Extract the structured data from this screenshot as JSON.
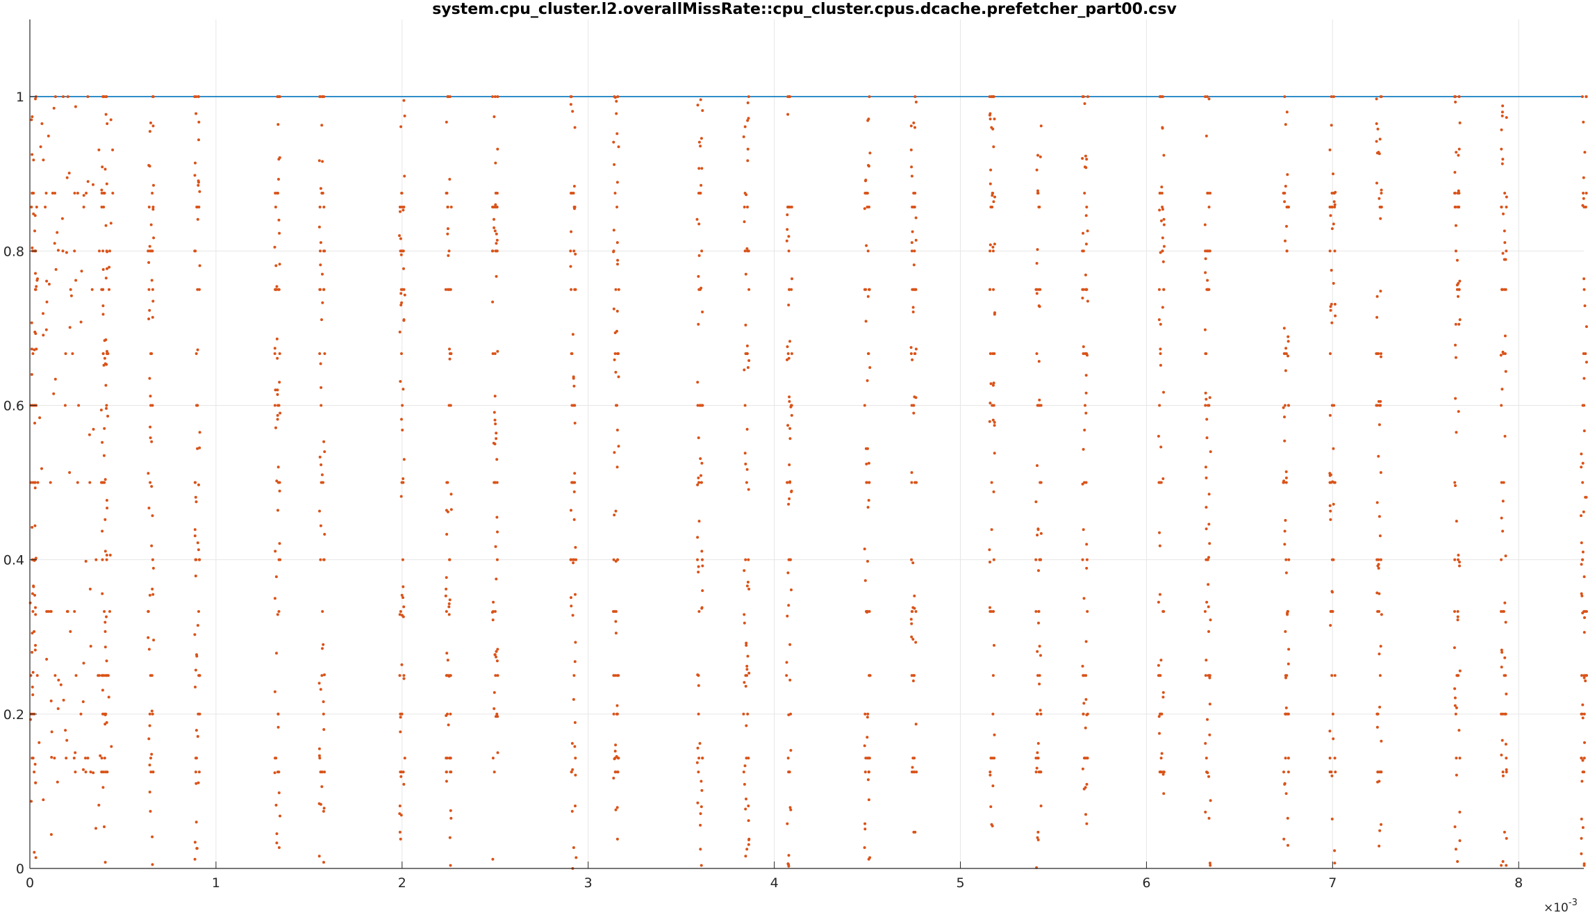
{
  "chart_data": {
    "type": "scatter",
    "title": "system.cpu_cluster.l2.overallMissRate::cpu_cluster.cpus.dcache.prefetcher_part00.csv",
    "xlabel": "",
    "ylabel": "",
    "xlim": [
      0,
      0.00835
    ],
    "ylim": [
      0,
      1.1
    ],
    "x_ticks": [
      0,
      1,
      2,
      3,
      4,
      5,
      6,
      7,
      8
    ],
    "y_ticks": [
      0,
      0.2,
      0.4,
      0.6,
      0.8,
      1
    ],
    "x_exponent_prefix": "×10",
    "x_exponent_power": "-3",
    "grid": true,
    "reference_line": {
      "y": 1,
      "color": "#0072BD"
    },
    "point_color": "#D95319",
    "clusters_e3": [
      0.02,
      0.4,
      0.65,
      0.9,
      1.33,
      1.57,
      2.0,
      2.25,
      2.5,
      2.92,
      3.15,
      3.6,
      3.85,
      4.08,
      4.5,
      4.75,
      5.17,
      5.42,
      5.67,
      6.08,
      6.33,
      6.75,
      7.0,
      7.25,
      7.67,
      7.92,
      8.35
    ],
    "series": [
      {
        "name": "",
        "x": [],
        "y": []
      }
    ]
  }
}
